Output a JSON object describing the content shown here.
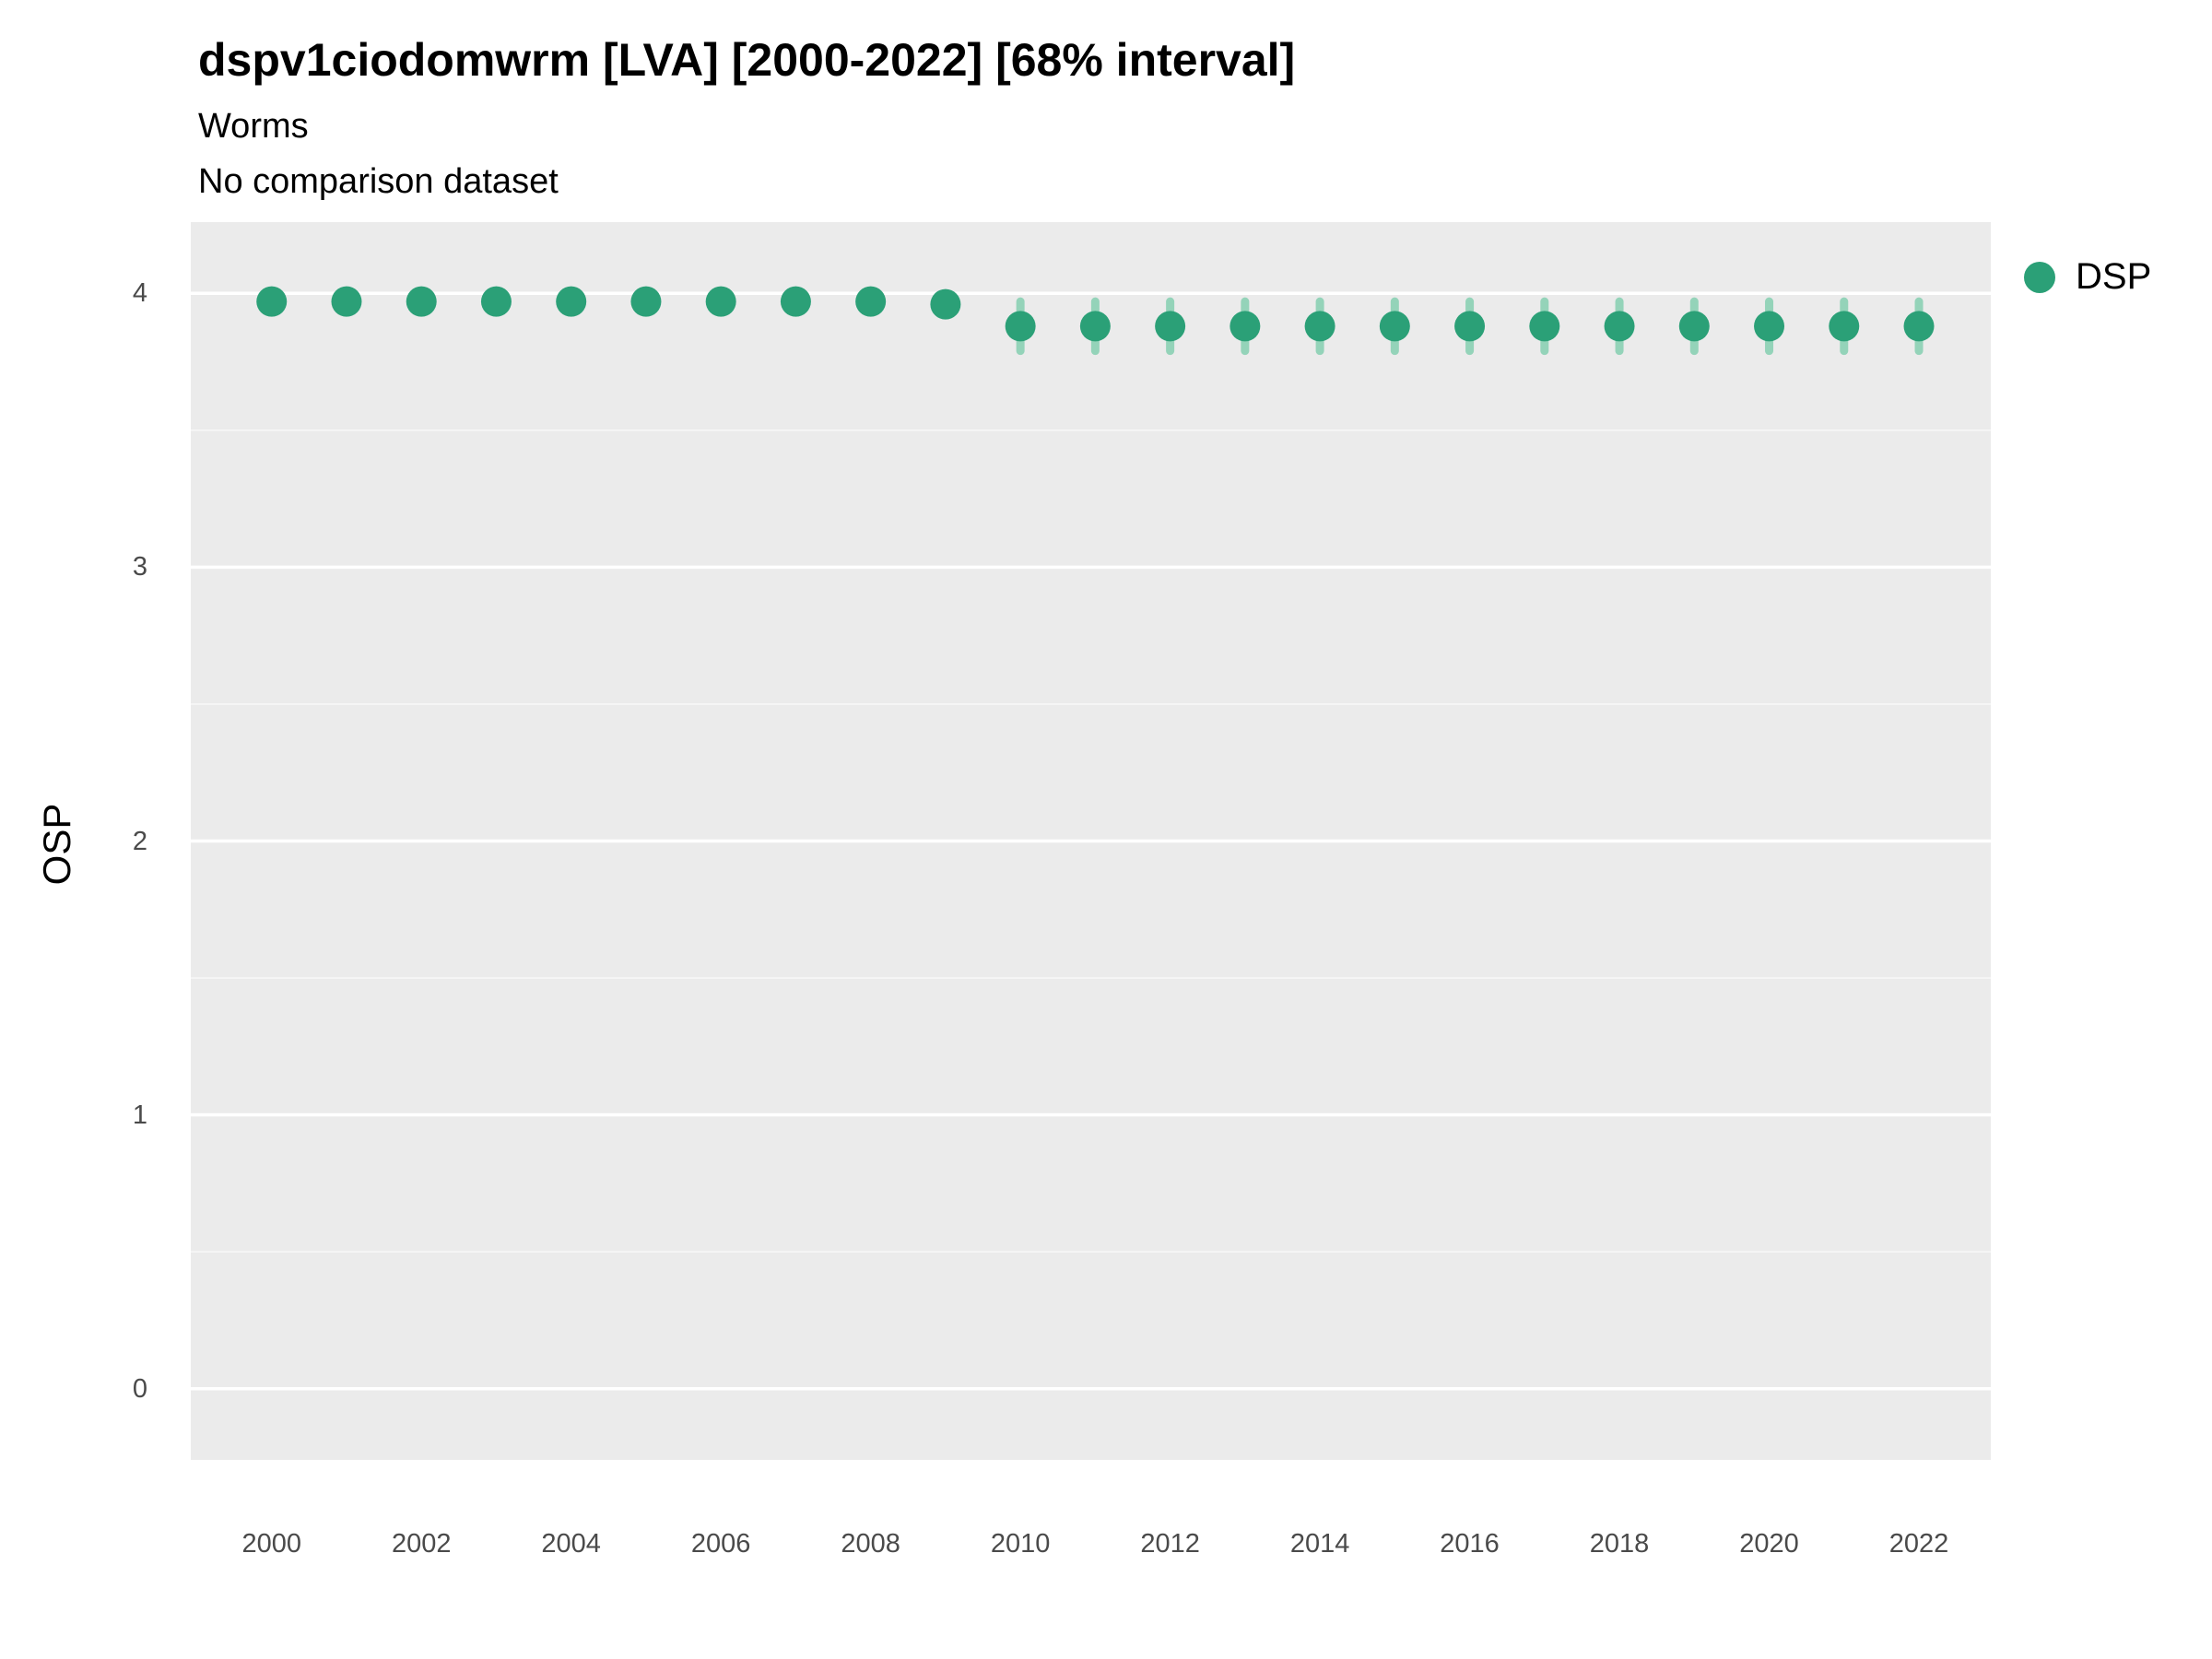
{
  "header": {
    "title": "dspv1ciodomwrm [LVA] [2000-2022] [68% interval]",
    "subtitle": "Worms",
    "comparison": "No comparison dataset"
  },
  "axes": {
    "y_label": "OSP",
    "y_ticks": [
      "4",
      "3",
      "2",
      "1",
      "0"
    ],
    "x_ticks": [
      "2000",
      "2002",
      "2004",
      "2006",
      "2008",
      "2010",
      "2012",
      "2014",
      "2016",
      "2018",
      "2020",
      "2022"
    ]
  },
  "legend": {
    "items": [
      {
        "label": "DSP",
        "color": "#2BA077"
      }
    ]
  },
  "chart_data": {
    "type": "scatter",
    "title": "dspv1ciodomwrm [LVA] [2000-2022] [68% interval]",
    "subtitle": "Worms",
    "note": "No comparison dataset",
    "xlabel": "",
    "ylabel": "OSP",
    "xlim": [
      1998.92,
      2022.96
    ],
    "ylim": [
      -0.26,
      4.26
    ],
    "grid": {
      "major_y": [
        0,
        1,
        2,
        3,
        4
      ],
      "minor_y": [
        0.5,
        1.5,
        2.5,
        3.5
      ]
    },
    "legend_position": "right-top",
    "series": [
      {
        "name": "DSP",
        "x": [
          2000,
          2001,
          2002,
          2003,
          2004,
          2005,
          2006,
          2007,
          2008,
          2009,
          2010,
          2011,
          2012,
          2013,
          2014,
          2015,
          2016,
          2017,
          2018,
          2019,
          2020,
          2021,
          2022
        ],
        "y": [
          3.97,
          3.97,
          3.97,
          3.97,
          3.97,
          3.97,
          3.97,
          3.97,
          3.97,
          3.96,
          3.88,
          3.88,
          3.88,
          3.88,
          3.88,
          3.88,
          3.88,
          3.88,
          3.88,
          3.88,
          3.88,
          3.88,
          3.88
        ],
        "y_low": [
          3.93,
          3.93,
          3.93,
          3.93,
          3.93,
          3.93,
          3.93,
          3.93,
          3.93,
          3.92,
          3.79,
          3.79,
          3.79,
          3.79,
          3.79,
          3.79,
          3.79,
          3.79,
          3.79,
          3.79,
          3.79,
          3.79,
          3.79
        ],
        "y_high": [
          4.01,
          4.01,
          4.01,
          4.01,
          4.01,
          4.01,
          4.01,
          4.01,
          4.01,
          4.0,
          3.97,
          3.97,
          3.97,
          3.97,
          3.97,
          3.97,
          3.97,
          3.97,
          3.97,
          3.97,
          3.97,
          3.97,
          3.97
        ]
      }
    ],
    "colors": {
      "point": "#2BA077",
      "interval": "#8BD0B4",
      "panel_bg": "#EBEBEB",
      "grid": "#FFFFFF"
    }
  }
}
